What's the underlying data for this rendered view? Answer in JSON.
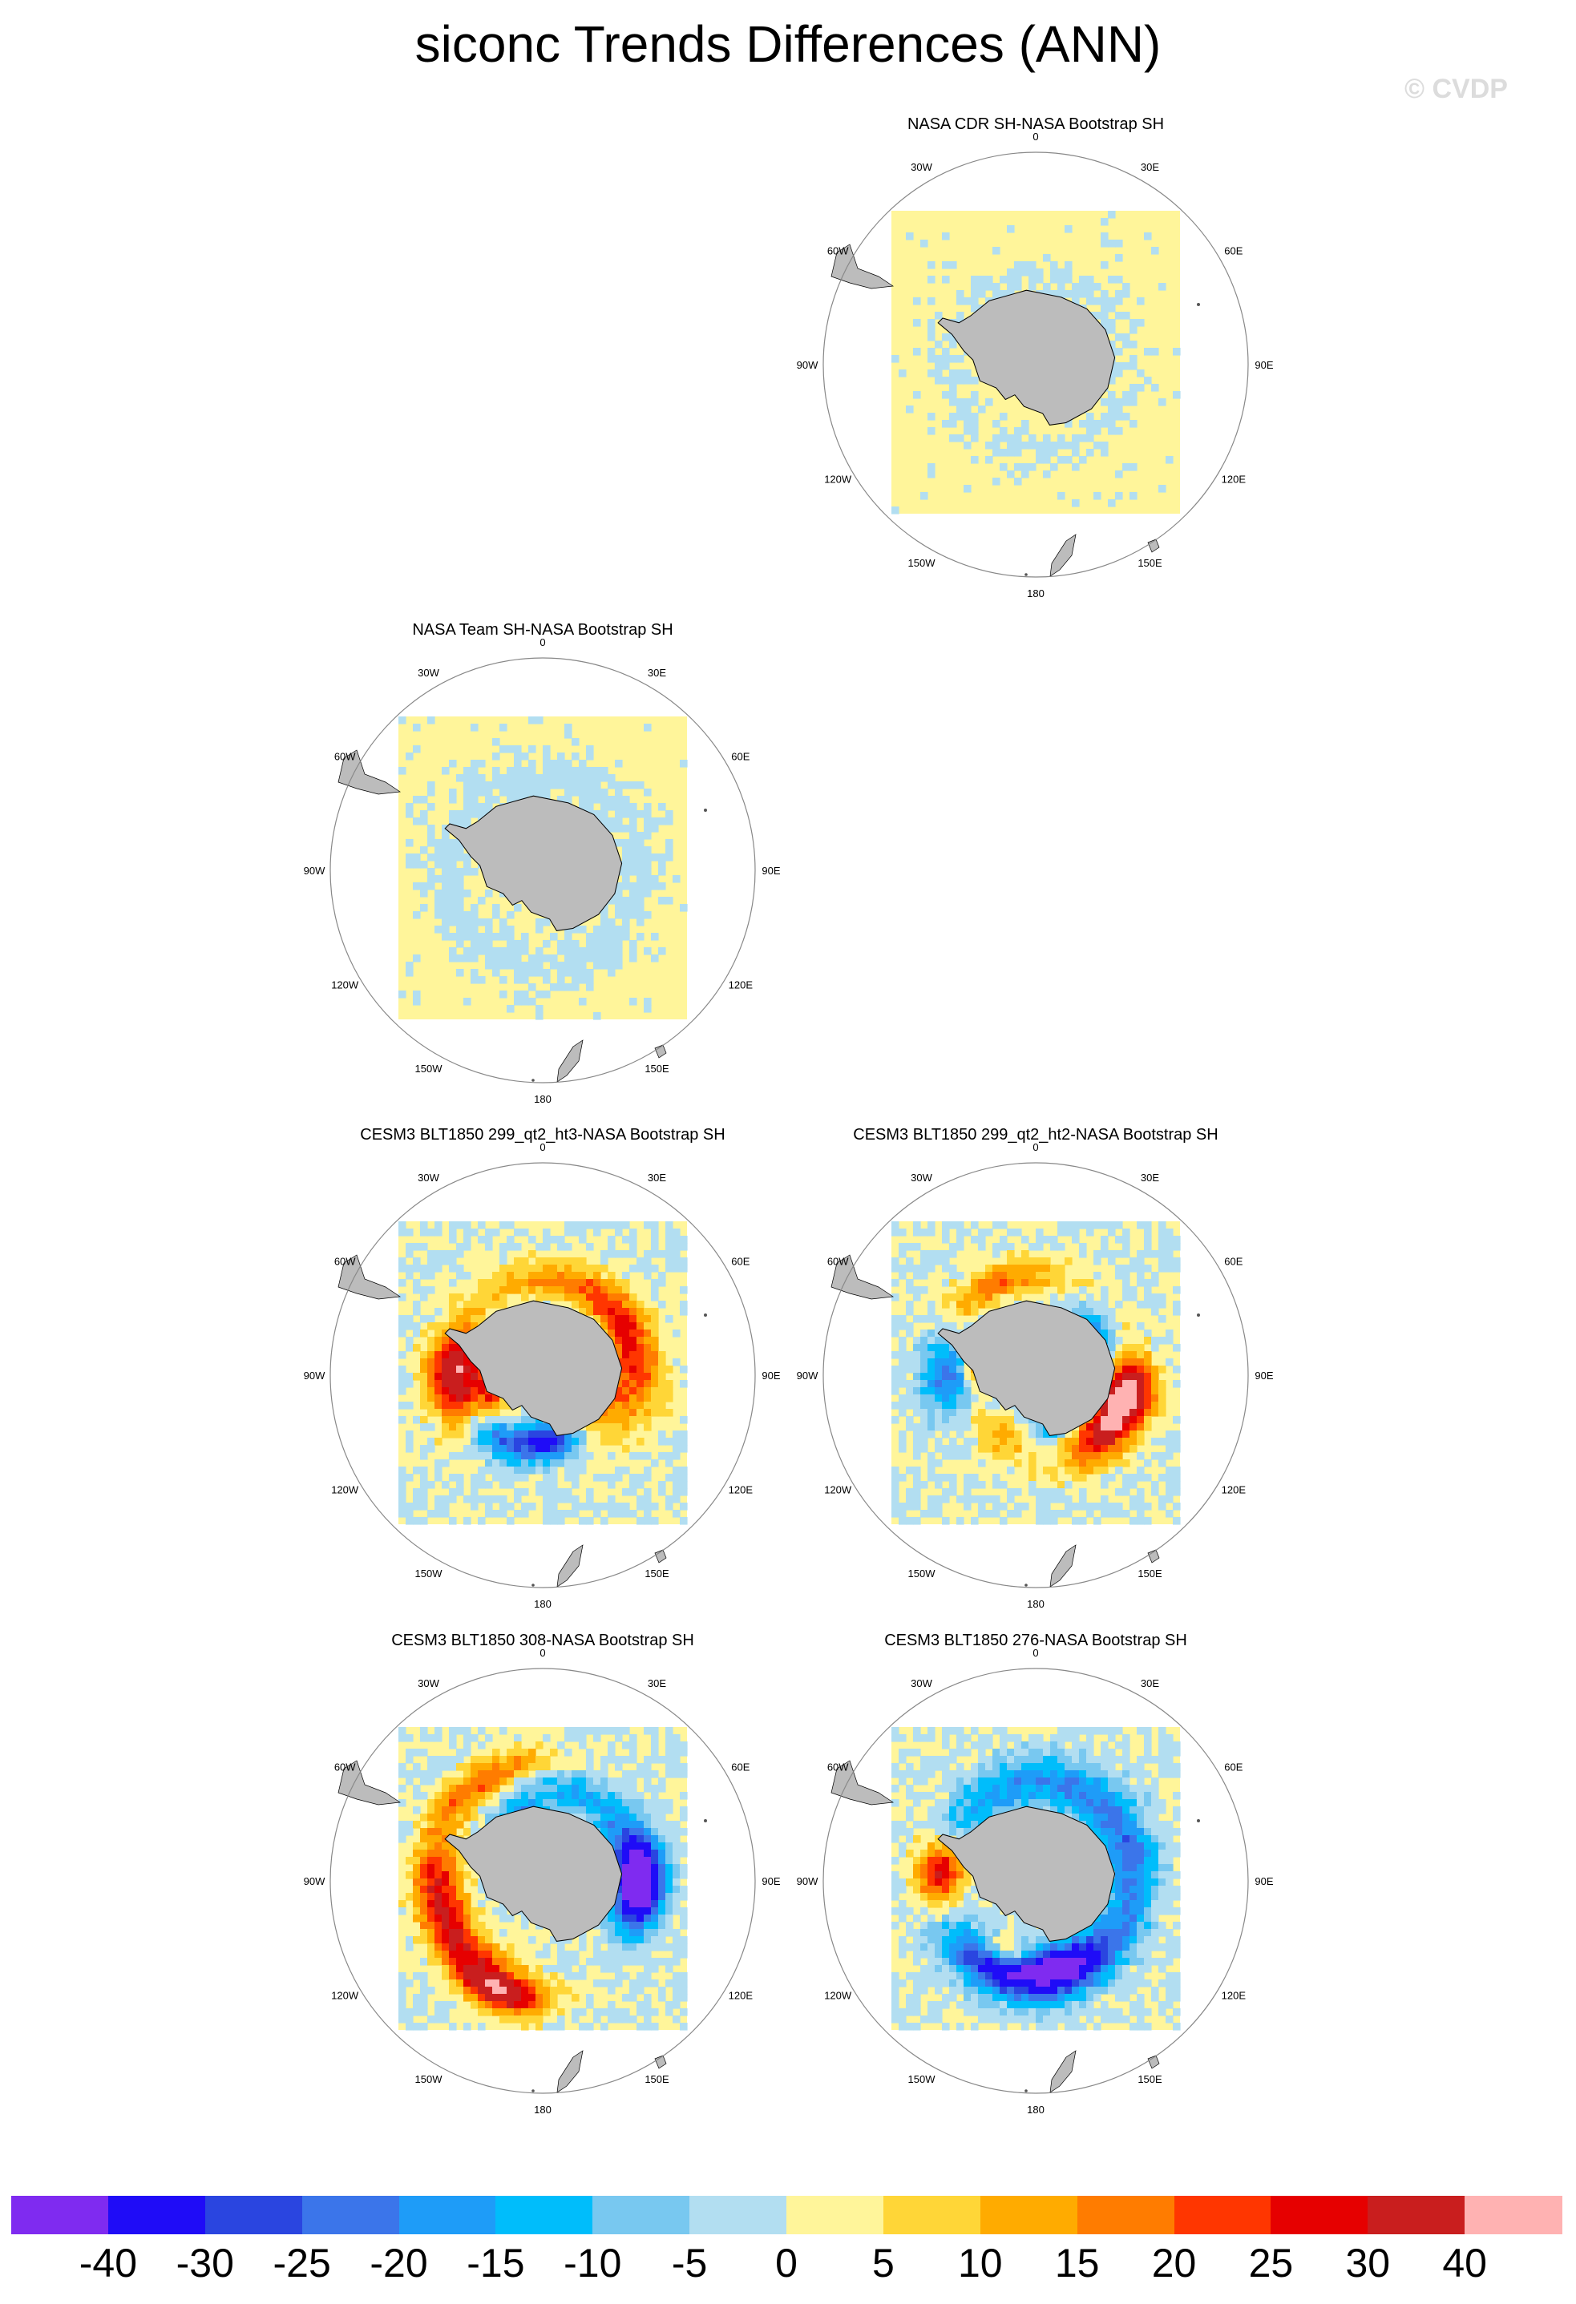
{
  "title": "siconc Trends Differences (ANN)",
  "watermark": "© CVDP",
  "lon_labels": [
    "0",
    "30E",
    "60E",
    "90E",
    "120E",
    "150E",
    "180",
    "150W",
    "120W",
    "90W",
    "60W",
    "30W"
  ],
  "panels": [
    {
      "title": "NASA CDR SH-NASA Bootstrap SH",
      "pattern": "cdr",
      "grid_position": "row 1, right"
    },
    {
      "title": "NASA Team SH-NASA Bootstrap SH",
      "pattern": "team",
      "grid_position": "row 2, left"
    },
    {
      "title": "CESM3 BLT1850 299_qt2_ht3-NASA Bootstrap SH",
      "pattern": "ht3",
      "grid_position": "row 3, left"
    },
    {
      "title": "CESM3 BLT1850 299_qt2_ht2-NASA Bootstrap SH",
      "pattern": "ht2",
      "grid_position": "row 3, right"
    },
    {
      "title": "CESM3 BLT1850 308-NASA Bootstrap SH",
      "pattern": "m308",
      "grid_position": "row 4, left"
    },
    {
      "title": "CESM3 BLT1850 276-NASA Bootstrap SH",
      "pattern": "m276",
      "grid_position": "row 4, right"
    }
  ],
  "colorbar": {
    "colors": [
      "#7f2bf0",
      "#1f0cf7",
      "#2a45e0",
      "#3b75ea",
      "#1e9cf8",
      "#00bdfb",
      "#78c8f0",
      "#b2def1",
      "#fff59a",
      "#ffd637",
      "#ffab00",
      "#ff7c00",
      "#ff3600",
      "#e60000",
      "#c91e1e",
      "#ffb2b2"
    ],
    "labels": [
      "-40",
      "-30",
      "-25",
      "-20",
      "-15",
      "-10",
      "-5",
      "0",
      "5",
      "10",
      "15",
      "20",
      "25",
      "30",
      "40"
    ]
  }
}
